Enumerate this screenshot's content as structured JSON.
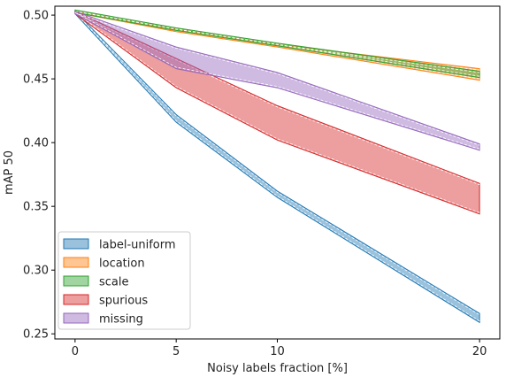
{
  "chart_data": {
    "type": "area",
    "xlabel": "Noisy labels fraction [%]",
    "ylabel": "mAP 50",
    "x": [
      0,
      5,
      10,
      20
    ],
    "xticks": [
      "0",
      "5",
      "10",
      "20"
    ],
    "yticks": [
      "0.25",
      "0.30",
      "0.35",
      "0.40",
      "0.45",
      "0.50"
    ],
    "xlim": [
      -1,
      21
    ],
    "ylim": [
      0.246,
      0.507
    ],
    "legend_position": "lower-left",
    "series": [
      {
        "name": "label-uniform",
        "color": "#1f77b4",
        "upper": [
          0.503,
          0.422,
          0.362,
          0.266
        ],
        "lower": [
          0.501,
          0.416,
          0.357,
          0.259
        ]
      },
      {
        "name": "location",
        "color": "#ff7f0e",
        "upper": [
          0.503,
          0.489,
          0.477,
          0.458
        ],
        "lower": [
          0.502,
          0.487,
          0.475,
          0.449
        ]
      },
      {
        "name": "scale",
        "color": "#2ca02c",
        "upper": [
          0.504,
          0.49,
          0.478,
          0.456
        ],
        "lower": [
          0.502,
          0.488,
          0.476,
          0.451
        ]
      },
      {
        "name": "spurious",
        "color": "#d62728",
        "upper": [
          0.503,
          0.466,
          0.429,
          0.368
        ],
        "lower": [
          0.501,
          0.443,
          0.402,
          0.344
        ]
      },
      {
        "name": "missing",
        "color": "#9467bd",
        "upper": [
          0.503,
          0.475,
          0.455,
          0.399
        ],
        "lower": [
          0.501,
          0.458,
          0.443,
          0.394
        ]
      }
    ]
  }
}
